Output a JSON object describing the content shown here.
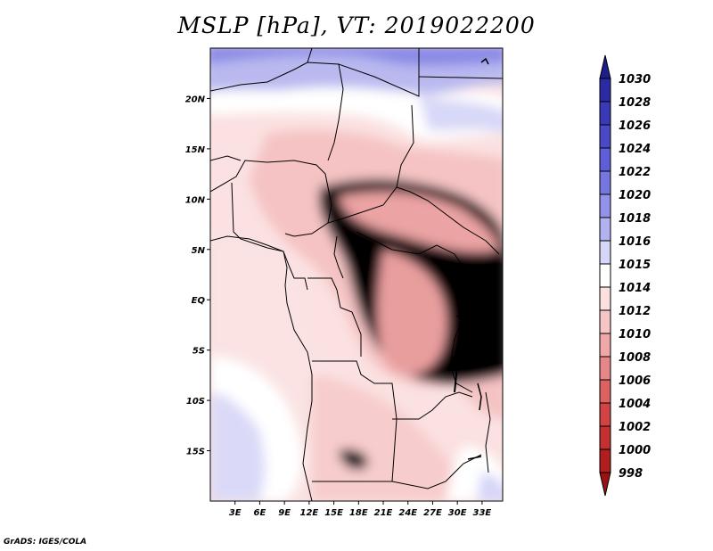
{
  "title": "MSLP [hPa], VT: 2019022200",
  "credit": "GrADS: IGES/COLA",
  "map": {
    "lon_labels": [
      "3E",
      "6E",
      "9E",
      "12E",
      "15E",
      "18E",
      "21E",
      "24E",
      "27E",
      "30E",
      "33E"
    ],
    "lat_labels": [
      "20N",
      "15N",
      "10N",
      "5N",
      "EQ",
      "5S",
      "10S",
      "15S"
    ],
    "lon_range": [
      0,
      35.5
    ],
    "lat_range": [
      -20,
      25
    ]
  },
  "colorbar": {
    "levels": [
      "1030",
      "1028",
      "1026",
      "1024",
      "1022",
      "1020",
      "1018",
      "1016",
      "1015",
      "1014",
      "1012",
      "1010",
      "1008",
      "1006",
      "1004",
      "1002",
      "1000",
      "998"
    ],
    "colors": [
      "#1d1d8c",
      "#2b2ba3",
      "#3a3ab8",
      "#4a4ac8",
      "#5e5ed6",
      "#7676e0",
      "#9292ea",
      "#b2b2f1",
      "#d6d6f8",
      "#ffffff",
      "#fbe0e0",
      "#f6c5c5",
      "#ef a8a8",
      "#e58787",
      "#dc6262",
      "#d24444",
      "#c42f2f",
      "#b01e1e",
      "#9a1212"
    ]
  }
}
